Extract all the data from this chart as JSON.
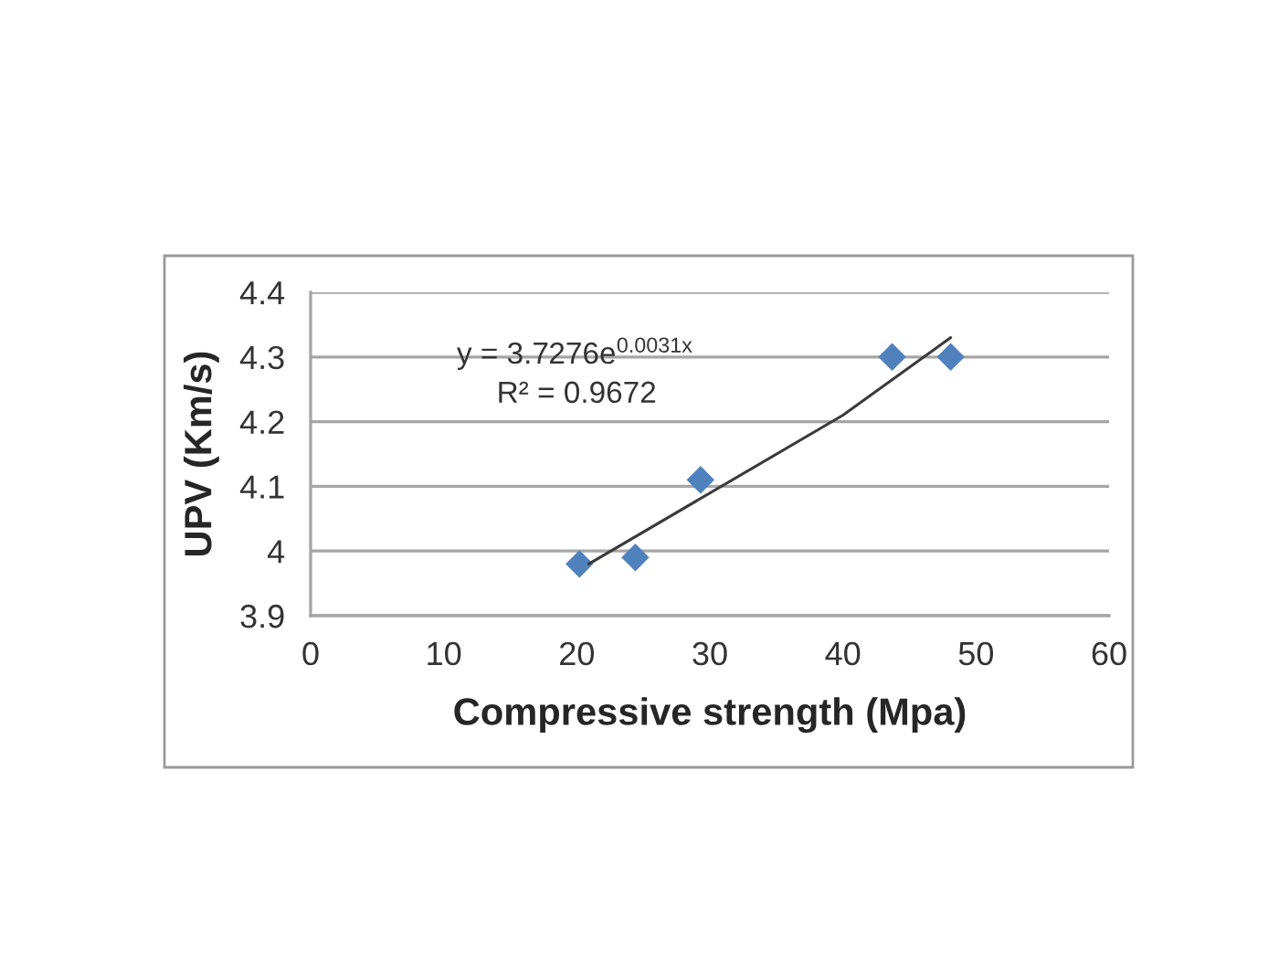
{
  "chart_data": {
    "type": "scatter",
    "xlabel": "Compressive strength (Mpa)",
    "ylabel": "UPV (Km/s)",
    "annotations": [
      "y = 3.7276e$^{0.0031x}$",
      "R² = 0.9672"
    ],
    "x": [
      20.2,
      24.4,
      29.3,
      43.7,
      48.1
    ],
    "series": [
      {
        "color": "#4f81bd",
        "values": [
          3.98,
          3.99,
          4.11,
          4.3,
          4.3
        ]
      },
      {
        "type": "line",
        "color": "#3a3a3a",
        "marker": "none",
        "line_style": "solid",
        "x": [
          20.9,
          40,
          48.1
        ],
        "values": [
          3.98,
          4.21,
          4.33
        ]
      }
    ],
    "xlim": [
      0,
      60
    ],
    "xticks": [
      0,
      10,
      20,
      30,
      40,
      50,
      60
    ],
    "ylim": [
      3.9,
      4.4
    ],
    "yticks": [
      3.9,
      4,
      4.1,
      4.2,
      4.3,
      4.4
    ],
    "grid": "y",
    "marker": "diamond"
  }
}
